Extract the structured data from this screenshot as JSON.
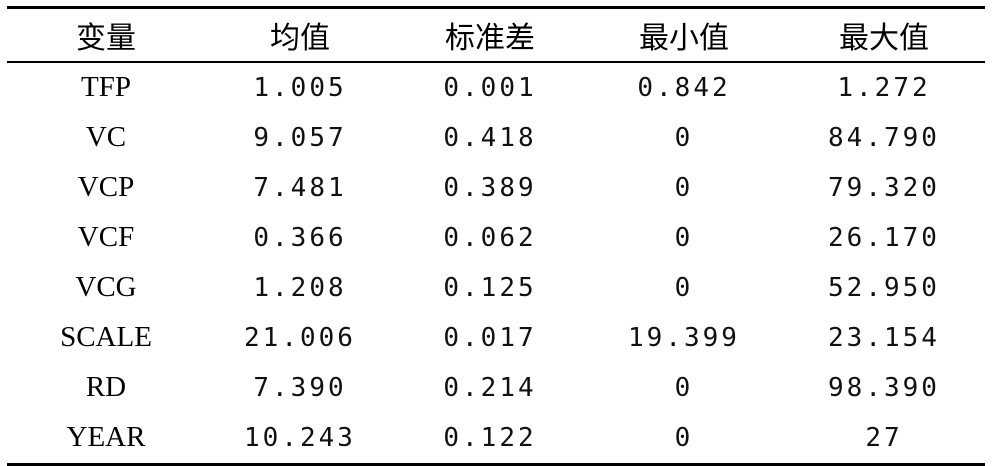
{
  "table": {
    "headers": [
      "变量",
      "均值",
      "标准差",
      "最小值",
      "最大值"
    ],
    "rows": [
      [
        "TFP",
        "1.005",
        "0.001",
        "0.842",
        "1.272"
      ],
      [
        "VC",
        "9.057",
        "0.418",
        "0",
        "84.790"
      ],
      [
        "VCP",
        "7.481",
        "0.389",
        "0",
        "79.320"
      ],
      [
        "VCF",
        "0.366",
        "0.062",
        "0",
        "26.170"
      ],
      [
        "VCG",
        "1.208",
        "0.125",
        "0",
        "52.950"
      ],
      [
        "SCALE",
        "21.006",
        "0.017",
        "19.399",
        "23.154"
      ],
      [
        "RD",
        "7.390",
        "0.214",
        "0",
        "98.390"
      ],
      [
        "YEAR",
        "10.243",
        "0.122",
        "0",
        "27"
      ]
    ]
  }
}
